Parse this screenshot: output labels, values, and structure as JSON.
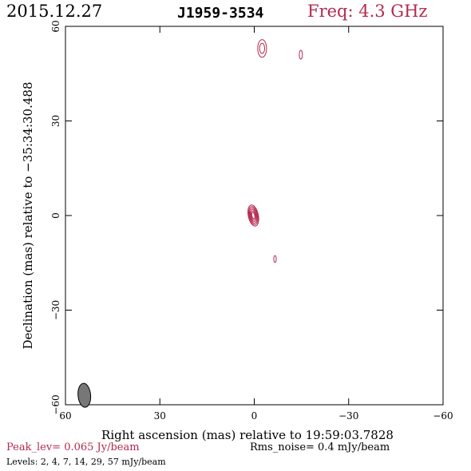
{
  "header": {
    "date": "2015.12.27",
    "source": "J1959-3534",
    "freq": "Freq: 4.3 GHz"
  },
  "footer": {
    "peak": "Peak_lev=  0.065 Jy/beam",
    "rms": "Rms_noise=  0.4 mJy/beam",
    "levels": "Levels:   2,   4,   7,   14,   29,   57  mJy/beam"
  },
  "colors": {
    "accent": "#b5294e",
    "contour": "#b5294e",
    "beam": "#777777"
  },
  "chart_data": {
    "type": "contour",
    "title": "J1959-3534",
    "xlabel": "Right ascension (mas) relative to 19:59:03.7828",
    "ylabel": "Declination (mas) relative to −35:34:30.488",
    "xlim": [
      60,
      -60
    ],
    "ylim": [
      -60,
      60
    ],
    "xticks": [
      60,
      30,
      0,
      -30,
      -60
    ],
    "yticks": [
      60,
      30,
      0,
      -30,
      -60
    ],
    "xtick_labels": [
      "60",
      "30",
      "0",
      "−30",
      "−60"
    ],
    "ytick_labels": [
      "60",
      "30",
      "0",
      "−30",
      "−60"
    ],
    "levels_mJy": [
      2,
      4,
      7,
      14,
      29,
      57
    ],
    "components": [
      {
        "x": 0.3,
        "y": 0.0,
        "levels": 6,
        "rx": 1.6,
        "ry": 3.4,
        "angle": -12
      },
      {
        "x": -2.5,
        "y": 53.0,
        "levels": 2,
        "rx": 1.4,
        "ry": 2.8,
        "angle": 0
      },
      {
        "x": -14.8,
        "y": 51.0,
        "levels": 1,
        "rx": 0.5,
        "ry": 1.4,
        "angle": 0
      },
      {
        "x": -6.6,
        "y": -13.8,
        "levels": 1,
        "rx": 0.4,
        "ry": 1.1,
        "angle": 0
      }
    ],
    "beam": {
      "x": 54,
      "y": -57,
      "major": 3.8,
      "minor": 2.0,
      "pa": -5
    }
  }
}
